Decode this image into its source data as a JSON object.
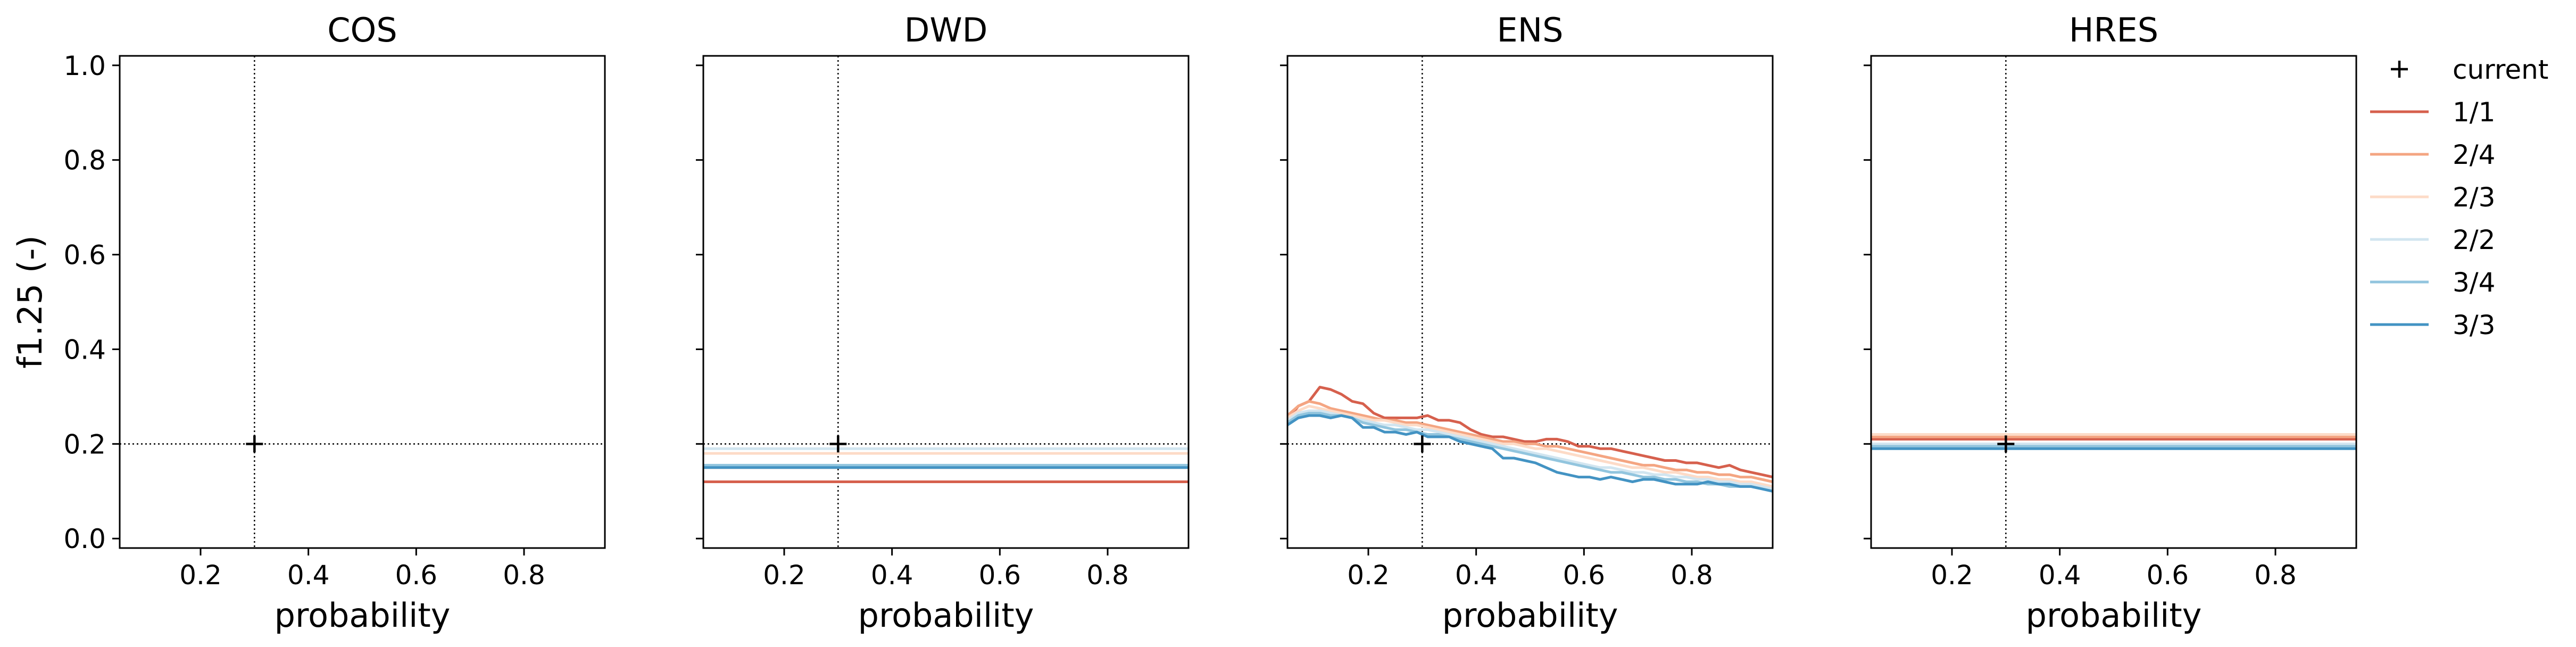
{
  "chart_data": {
    "type": "line",
    "ylabel": "f1.25 (-)",
    "xlim": [
      0.05,
      0.95
    ],
    "ylim": [
      -0.02,
      1.02
    ],
    "xticks": [
      0.2,
      0.4,
      0.6,
      0.8
    ],
    "yticks": [
      0.0,
      0.2,
      0.4,
      0.6,
      0.8,
      1.0
    ],
    "grid": false,
    "reference_lines": {
      "x": 0.3,
      "y": 0.2
    },
    "current_point": {
      "x": 0.3,
      "y": 0.2
    },
    "legend": {
      "placement": "outside-right",
      "entries": [
        {
          "label": "current",
          "marker": "+",
          "color": "#000000"
        },
        {
          "label": "1/1",
          "color": "#d6604d"
        },
        {
          "label": "2/4",
          "color": "#f4a582"
        },
        {
          "label": "2/3",
          "color": "#fddbc7"
        },
        {
          "label": "2/2",
          "color": "#d1e5f0"
        },
        {
          "label": "3/4",
          "color": "#92c5de"
        },
        {
          "label": "3/3",
          "color": "#4393c3"
        }
      ]
    },
    "panels": [
      {
        "title": "COS",
        "xlabel": "probability",
        "series": []
      },
      {
        "title": "DWD",
        "xlabel": "probability",
        "series": [
          {
            "name": "1/1",
            "color": "#d6604d",
            "x": [
              0.05,
              0.95
            ],
            "y": [
              0.12,
              0.12
            ]
          },
          {
            "name": "2/4",
            "color": "#f4a582",
            "x": [
              0.05,
              0.95
            ],
            "y": [
              0.15,
              0.15
            ]
          },
          {
            "name": "2/3",
            "color": "#fddbc7",
            "x": [
              0.05,
              0.95
            ],
            "y": [
              0.18,
              0.18
            ]
          },
          {
            "name": "2/2",
            "color": "#d1e5f0",
            "x": [
              0.05,
              0.95
            ],
            "y": [
              0.19,
              0.19
            ]
          },
          {
            "name": "3/4",
            "color": "#92c5de",
            "x": [
              0.05,
              0.95
            ],
            "y": [
              0.155,
              0.155
            ]
          },
          {
            "name": "3/3",
            "color": "#4393c3",
            "x": [
              0.05,
              0.95
            ],
            "y": [
              0.15,
              0.15
            ]
          }
        ]
      },
      {
        "title": "ENS",
        "xlabel": "probability",
        "series": [
          {
            "name": "1/1",
            "color": "#d6604d",
            "x": [
              0.05,
              0.07,
              0.09,
              0.11,
              0.13,
              0.15,
              0.17,
              0.19,
              0.21,
              0.23,
              0.25,
              0.27,
              0.29,
              0.31,
              0.33,
              0.35,
              0.37,
              0.39,
              0.41,
              0.43,
              0.45,
              0.47,
              0.49,
              0.51,
              0.53,
              0.55,
              0.57,
              0.59,
              0.61,
              0.63,
              0.65,
              0.67,
              0.69,
              0.71,
              0.73,
              0.75,
              0.77,
              0.79,
              0.81,
              0.83,
              0.85,
              0.87,
              0.89,
              0.91,
              0.93,
              0.95
            ],
            "y": [
              0.25,
              0.28,
              0.29,
              0.32,
              0.315,
              0.305,
              0.29,
              0.285,
              0.265,
              0.255,
              0.255,
              0.255,
              0.255,
              0.26,
              0.25,
              0.25,
              0.245,
              0.23,
              0.22,
              0.215,
              0.215,
              0.21,
              0.205,
              0.205,
              0.21,
              0.21,
              0.205,
              0.195,
              0.195,
              0.19,
              0.19,
              0.185,
              0.18,
              0.175,
              0.17,
              0.165,
              0.165,
              0.16,
              0.16,
              0.155,
              0.15,
              0.155,
              0.145,
              0.14,
              0.135,
              0.13
            ]
          },
          {
            "name": "2/4",
            "color": "#f4a582",
            "x": [
              0.05,
              0.07,
              0.09,
              0.11,
              0.13,
              0.15,
              0.17,
              0.19,
              0.21,
              0.23,
              0.25,
              0.27,
              0.29,
              0.31,
              0.33,
              0.35,
              0.37,
              0.39,
              0.41,
              0.43,
              0.45,
              0.47,
              0.49,
              0.51,
              0.53,
              0.55,
              0.57,
              0.59,
              0.61,
              0.63,
              0.65,
              0.67,
              0.69,
              0.71,
              0.73,
              0.75,
              0.77,
              0.79,
              0.81,
              0.83,
              0.85,
              0.87,
              0.89,
              0.91,
              0.93,
              0.95
            ],
            "y": [
              0.26,
              0.28,
              0.29,
              0.285,
              0.275,
              0.27,
              0.265,
              0.26,
              0.255,
              0.25,
              0.25,
              0.245,
              0.245,
              0.24,
              0.235,
              0.23,
              0.225,
              0.22,
              0.215,
              0.21,
              0.205,
              0.205,
              0.2,
              0.2,
              0.195,
              0.195,
              0.19,
              0.185,
              0.18,
              0.175,
              0.17,
              0.165,
              0.16,
              0.155,
              0.155,
              0.15,
              0.145,
              0.145,
              0.14,
              0.14,
              0.135,
              0.135,
              0.13,
              0.13,
              0.125,
              0.12
            ]
          },
          {
            "name": "2/3",
            "color": "#fddbc7",
            "x": [
              0.05,
              0.07,
              0.09,
              0.11,
              0.13,
              0.15,
              0.17,
              0.19,
              0.21,
              0.23,
              0.25,
              0.27,
              0.29,
              0.31,
              0.33,
              0.35,
              0.37,
              0.39,
              0.41,
              0.43,
              0.45,
              0.47,
              0.49,
              0.51,
              0.53,
              0.55,
              0.57,
              0.59,
              0.61,
              0.63,
              0.65,
              0.67,
              0.69,
              0.71,
              0.73,
              0.75,
              0.77,
              0.79,
              0.81,
              0.83,
              0.85,
              0.87,
              0.89,
              0.91,
              0.93,
              0.95
            ],
            "y": [
              0.255,
              0.27,
              0.28,
              0.275,
              0.27,
              0.265,
              0.26,
              0.255,
              0.25,
              0.25,
              0.245,
              0.24,
              0.24,
              0.235,
              0.23,
              0.225,
              0.22,
              0.215,
              0.21,
              0.205,
              0.2,
              0.2,
              0.195,
              0.19,
              0.19,
              0.185,
              0.18,
              0.175,
              0.17,
              0.165,
              0.16,
              0.155,
              0.15,
              0.15,
              0.145,
              0.14,
              0.14,
              0.135,
              0.13,
              0.13,
              0.125,
              0.125,
              0.12,
              0.12,
              0.115,
              0.11
            ]
          },
          {
            "name": "2/2",
            "color": "#d1e5f0",
            "x": [
              0.05,
              0.07,
              0.09,
              0.11,
              0.13,
              0.15,
              0.17,
              0.19,
              0.21,
              0.23,
              0.25,
              0.27,
              0.29,
              0.31,
              0.33,
              0.35,
              0.37,
              0.39,
              0.41,
              0.43,
              0.45,
              0.47,
              0.49,
              0.51,
              0.53,
              0.55,
              0.57,
              0.59,
              0.61,
              0.63,
              0.65,
              0.67,
              0.69,
              0.71,
              0.73,
              0.75,
              0.77,
              0.79,
              0.81,
              0.83,
              0.85,
              0.87,
              0.89,
              0.91,
              0.93,
              0.95
            ],
            "y": [
              0.25,
              0.265,
              0.27,
              0.27,
              0.265,
              0.26,
              0.255,
              0.25,
              0.245,
              0.24,
              0.24,
              0.235,
              0.23,
              0.23,
              0.225,
              0.22,
              0.215,
              0.21,
              0.205,
              0.2,
              0.195,
              0.19,
              0.185,
              0.18,
              0.175,
              0.17,
              0.165,
              0.16,
              0.155,
              0.15,
              0.15,
              0.145,
              0.14,
              0.14,
              0.135,
              0.135,
              0.13,
              0.13,
              0.125,
              0.125,
              0.12,
              0.12,
              0.115,
              0.115,
              0.11,
              0.105
            ]
          },
          {
            "name": "3/4",
            "color": "#92c5de",
            "x": [
              0.05,
              0.07,
              0.09,
              0.11,
              0.13,
              0.15,
              0.17,
              0.19,
              0.21,
              0.23,
              0.25,
              0.27,
              0.29,
              0.31,
              0.33,
              0.35,
              0.37,
              0.39,
              0.41,
              0.43,
              0.45,
              0.47,
              0.49,
              0.51,
              0.53,
              0.55,
              0.57,
              0.59,
              0.61,
              0.63,
              0.65,
              0.67,
              0.69,
              0.71,
              0.73,
              0.75,
              0.77,
              0.79,
              0.81,
              0.83,
              0.85,
              0.87,
              0.89,
              0.91,
              0.93,
              0.95
            ],
            "y": [
              0.245,
              0.26,
              0.265,
              0.265,
              0.26,
              0.26,
              0.255,
              0.245,
              0.24,
              0.235,
              0.23,
              0.23,
              0.225,
              0.22,
              0.22,
              0.215,
              0.21,
              0.205,
              0.2,
              0.195,
              0.19,
              0.185,
              0.18,
              0.175,
              0.17,
              0.165,
              0.16,
              0.155,
              0.15,
              0.145,
              0.14,
              0.14,
              0.135,
              0.13,
              0.13,
              0.125,
              0.125,
              0.12,
              0.12,
              0.115,
              0.115,
              0.11,
              0.11,
              0.11,
              0.105,
              0.1
            ]
          },
          {
            "name": "3/3",
            "color": "#4393c3",
            "x": [
              0.05,
              0.07,
              0.09,
              0.11,
              0.13,
              0.15,
              0.17,
              0.19,
              0.21,
              0.23,
              0.25,
              0.27,
              0.29,
              0.31,
              0.33,
              0.35,
              0.37,
              0.39,
              0.41,
              0.43,
              0.45,
              0.47,
              0.49,
              0.51,
              0.53,
              0.55,
              0.57,
              0.59,
              0.61,
              0.63,
              0.65,
              0.67,
              0.69,
              0.71,
              0.73,
              0.75,
              0.77,
              0.79,
              0.81,
              0.83,
              0.85,
              0.87,
              0.89,
              0.91,
              0.93,
              0.95
            ],
            "y": [
              0.24,
              0.255,
              0.26,
              0.26,
              0.255,
              0.26,
              0.255,
              0.235,
              0.235,
              0.225,
              0.225,
              0.22,
              0.225,
              0.215,
              0.215,
              0.215,
              0.205,
              0.2,
              0.195,
              0.19,
              0.17,
              0.17,
              0.165,
              0.16,
              0.15,
              0.14,
              0.135,
              0.13,
              0.13,
              0.125,
              0.13,
              0.125,
              0.12,
              0.125,
              0.125,
              0.12,
              0.115,
              0.115,
              0.115,
              0.12,
              0.115,
              0.115,
              0.11,
              0.11,
              0.105,
              0.1
            ]
          }
        ]
      },
      {
        "title": "HRES",
        "xlabel": "probability",
        "series": [
          {
            "name": "1/1",
            "color": "#d6604d",
            "x": [
              0.05,
              0.95
            ],
            "y": [
              0.21,
              0.21
            ]
          },
          {
            "name": "2/4",
            "color": "#f4a582",
            "x": [
              0.05,
              0.95
            ],
            "y": [
              0.215,
              0.215
            ]
          },
          {
            "name": "2/3",
            "color": "#fddbc7",
            "x": [
              0.05,
              0.95
            ],
            "y": [
              0.22,
              0.22
            ]
          },
          {
            "name": "2/2",
            "color": "#d1e5f0",
            "x": [
              0.05,
              0.95
            ],
            "y": [
              0.2,
              0.2
            ]
          },
          {
            "name": "3/4",
            "color": "#92c5de",
            "x": [
              0.05,
              0.95
            ],
            "y": [
              0.195,
              0.195
            ]
          },
          {
            "name": "3/3",
            "color": "#4393c3",
            "x": [
              0.05,
              0.95
            ],
            "y": [
              0.19,
              0.19
            ]
          }
        ]
      }
    ]
  }
}
